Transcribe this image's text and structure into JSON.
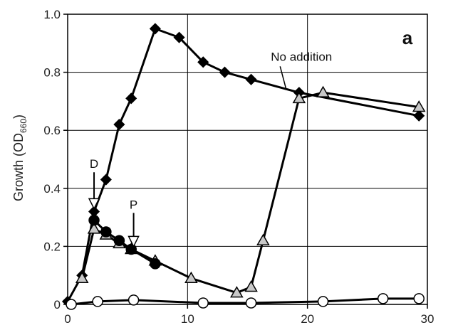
{
  "chart_data": {
    "type": "line",
    "title": "",
    "panel_label": "a",
    "xlabel": "",
    "ylabel": "Growth (OD",
    "ylabel_sub": "660",
    "ylabel_close": ")",
    "xlim": [
      0,
      30
    ],
    "ylim": [
      0,
      1.0
    ],
    "x_ticks": [
      0,
      10,
      20,
      30
    ],
    "x_tick_labels": [
      "0",
      "10",
      "20",
      "30"
    ],
    "y_ticks": [
      0,
      0.2,
      0.4,
      0.6,
      0.8,
      1.0
    ],
    "y_tick_labels": [
      "0",
      "0.2",
      "0.4",
      "0.6",
      "0.8",
      "1.0"
    ],
    "grid": true,
    "series": [
      {
        "marker": "diamond",
        "fill": "#000000",
        "x": [
          0,
          1.2,
          2.2,
          3.2,
          4.3,
          5.3,
          7.3,
          9.3,
          11.3,
          13.1,
          15.3,
          19.3,
          29.3
        ],
        "y": [
          0.01,
          0.1,
          0.32,
          0.43,
          0.62,
          0.71,
          0.95,
          0.92,
          0.835,
          0.8,
          0.775,
          0.73,
          0.65
        ]
      },
      {
        "marker": "triangle",
        "fill": "#c8c8c8",
        "x": [
          1.2,
          2.2,
          3.2,
          4.3,
          5.3,
          7.3,
          10.3,
          14.1,
          15.3,
          16.3,
          19.3,
          21.3,
          29.3
        ],
        "y": [
          0.09,
          0.26,
          0.24,
          0.21,
          0.19,
          0.15,
          0.09,
          0.04,
          0.06,
          0.22,
          0.71,
          0.73,
          0.68
        ]
      },
      {
        "marker": "circle",
        "fill": "#000000",
        "x": [
          2.2,
          3.2,
          4.3,
          5.3,
          7.3
        ],
        "y": [
          0.29,
          0.25,
          0.22,
          0.19,
          0.14
        ]
      },
      {
        "marker": "circle",
        "fill": "#ffffff",
        "x": [
          0.3,
          2.5,
          5.5,
          11.3,
          15.3,
          21.3,
          26.3,
          29.3
        ],
        "y": [
          0.0,
          0.01,
          0.015,
          0.005,
          0.005,
          0.01,
          0.02,
          0.02
        ]
      }
    ],
    "annotations": [
      {
        "text": "No addition",
        "x": 19.5,
        "y": 0.84,
        "pointer_to": [
          18.2,
          0.745
        ]
      },
      {
        "text": "D",
        "x": 2.2,
        "y": 0.47,
        "arrow_to": [
          2.2,
          0.33
        ]
      },
      {
        "text": "P",
        "x": 5.5,
        "y": 0.33,
        "arrow_to": [
          5.5,
          0.2
        ]
      }
    ]
  }
}
